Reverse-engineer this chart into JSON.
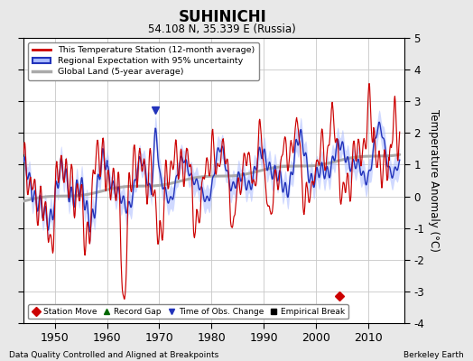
{
  "title": "SUHINICHI",
  "subtitle": "54.108 N, 35.339 E (Russia)",
  "ylabel": "Temperature Anomaly (°C)",
  "xlabel_bottom_left": "Data Quality Controlled and Aligned at Breakpoints",
  "xlabel_bottom_right": "Berkeley Earth",
  "ylim": [
    -4,
    5
  ],
  "yticks": [
    -4,
    -3,
    -2,
    -1,
    0,
    1,
    2,
    3,
    4,
    5
  ],
  "xlim": [
    1944,
    2017
  ],
  "xticks": [
    1950,
    1960,
    1970,
    1980,
    1990,
    2000,
    2010
  ],
  "bg_color": "#e8e8e8",
  "plot_bg_color": "#ffffff",
  "grid_color": "#c8c8c8",
  "station_line_color": "#cc0000",
  "regional_line_color": "#2233bb",
  "regional_fill_color": "#aabbff",
  "global_line_color": "#aaaaaa",
  "station_move_x": 2004.5,
  "station_move_y": -3.15,
  "time_obs_change_x": 1969.3,
  "time_obs_change_y": 2.72
}
